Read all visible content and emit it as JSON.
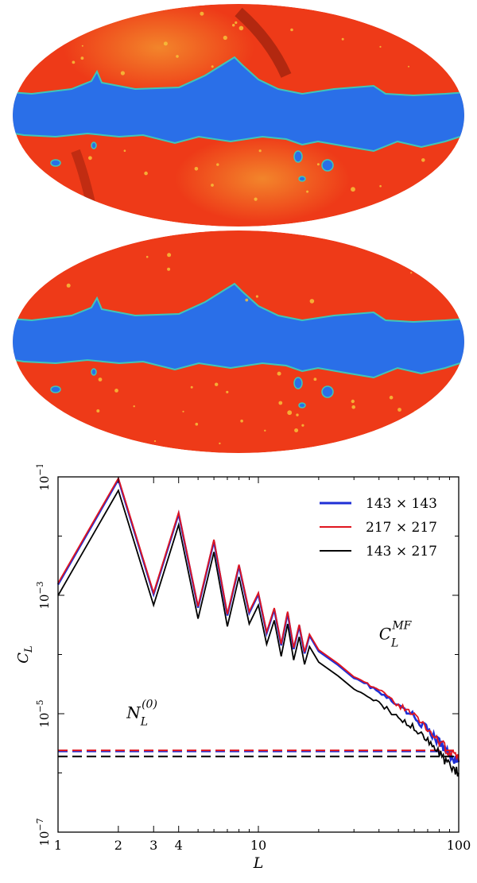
{
  "maps": [
    {
      "name": "top-sky-map",
      "band_color": "#2a6fe8",
      "field_color": "#ee3a18",
      "highlight_color": "#f6c23a",
      "dark_color": "#8a1c0c"
    },
    {
      "name": "bottom-sky-map",
      "band_color": "#2a6fe8",
      "field_color": "#ee3a18",
      "highlight_color": "#f6c23a"
    }
  ],
  "chart_data": {
    "type": "line",
    "xscale": "log",
    "yscale": "log",
    "xlim": [
      1,
      100
    ],
    "ylim": [
      1e-07,
      0.1
    ],
    "xlabel": "L",
    "ylabel": "C_L",
    "x_ticks": [
      {
        "value": 1,
        "label": "1"
      },
      {
        "value": 2,
        "label": "2"
      },
      {
        "value": 3,
        "label": "3"
      },
      {
        "value": 4,
        "label": "4"
      },
      {
        "value": 10,
        "label": "10"
      },
      {
        "value": 100,
        "label": "100"
      }
    ],
    "y_ticks": [
      {
        "value": 1e-07,
        "base": "10",
        "exp": "−7"
      },
      {
        "value": 1e-05,
        "base": "10",
        "exp": "−5"
      },
      {
        "value": 0.001,
        "base": "10",
        "exp": "−3"
      },
      {
        "value": 0.1,
        "base": "10",
        "exp": "−1"
      }
    ],
    "legend": {
      "position": "top-right"
    },
    "series": [
      {
        "name": "143 × 143",
        "color": "#1f2fd6",
        "kind": "mean-field",
        "scale": 0.95,
        "noise_level": 2.3e-06
      },
      {
        "name": "217 × 217",
        "color": "#e0151f",
        "kind": "mean-field",
        "scale": 1.0,
        "noise_level": 2.4e-06
      },
      {
        "name": "143 × 217",
        "color": "#000000",
        "kind": "mean-field",
        "scale": 0.62,
        "noise_level": 1.9e-06
      }
    ],
    "mean_field_points": [
      {
        "L": 1,
        "C": 0.0016
      },
      {
        "L": 2,
        "C": 0.095
      },
      {
        "L": 3,
        "C": 0.0011
      },
      {
        "L": 4,
        "C": 0.025
      },
      {
        "L": 5,
        "C": 0.00065
      },
      {
        "L": 6,
        "C": 0.0087
      },
      {
        "L": 7,
        "C": 0.00048
      },
      {
        "L": 8,
        "C": 0.0033
      },
      {
        "L": 9,
        "C": 0.00053
      },
      {
        "L": 10,
        "C": 0.0011
      },
      {
        "L": 11,
        "C": 0.00024
      },
      {
        "L": 12,
        "C": 0.00061
      },
      {
        "L": 13,
        "C": 0.00015
      },
      {
        "L": 14,
        "C": 0.00053
      },
      {
        "L": 15,
        "C": 0.00013
      },
      {
        "L": 16,
        "C": 0.00032
      },
      {
        "L": 17,
        "C": 0.00011
      },
      {
        "L": 18,
        "C": 0.00022
      },
      {
        "L": 20,
        "C": 0.00012
      },
      {
        "L": 25,
        "C": 7e-05
      },
      {
        "L": 30,
        "C": 4.5e-05
      },
      {
        "L": 40,
        "C": 2.4e-05
      },
      {
        "L": 50,
        "C": 1.4e-05
      },
      {
        "L": 60,
        "C": 9.5e-06
      },
      {
        "L": 70,
        "C": 5.5e-06
      },
      {
        "L": 80,
        "C": 3.4e-06
      },
      {
        "L": 90,
        "C": 2.2e-06
      },
      {
        "L": 100,
        "C": 1.6e-06
      }
    ],
    "annotations": [
      {
        "id": "mf",
        "text": "C",
        "sub": "L",
        "sup": "MF",
        "L": 40,
        "C": 0.00018
      },
      {
        "id": "n0",
        "text": "N",
        "sub": "L",
        "sup": "(0)",
        "L": 2.2,
        "C": 8.5e-06
      }
    ]
  }
}
